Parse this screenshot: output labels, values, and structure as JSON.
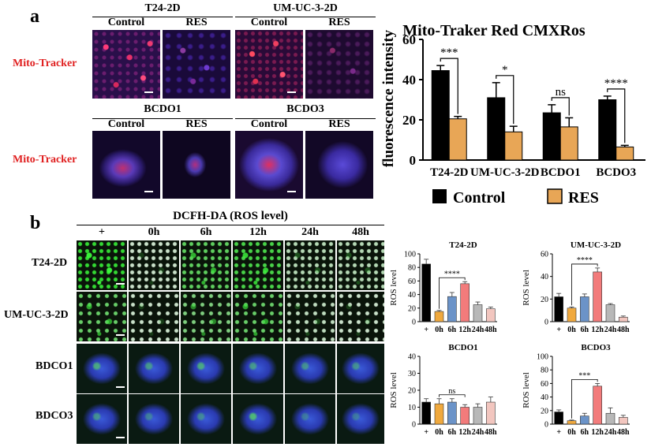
{
  "panel_a": {
    "label": "a",
    "groups": [
      {
        "title": "T24-2D",
        "conditions": [
          "Control",
          "RES"
        ]
      },
      {
        "title": "UM-UC-3-2D",
        "conditions": [
          "Control",
          "RES"
        ]
      },
      {
        "title": "BCDO1",
        "conditions": [
          "Control",
          "RES"
        ]
      },
      {
        "title": "BCDO3",
        "conditions": [
          "Control",
          "RES"
        ]
      }
    ],
    "row_label": "Mito-Tracker"
  },
  "panel_b": {
    "label": "b",
    "header": "DCFH-DA (ROS level)",
    "timepoints": [
      "+",
      "0h",
      "6h",
      "12h",
      "24h",
      "48h"
    ],
    "rows": [
      "T24-2D",
      "UM-UC-3-2D",
      "BDCO1",
      "BDCO3"
    ]
  },
  "colors": {
    "control": "#000000",
    "res": "#e8a656",
    "ros_bars": [
      "#000000",
      "#f0a93e",
      "#6b93c8",
      "#f27b7b",
      "#b8b8b8",
      "#f2c6bf"
    ]
  },
  "chart_data": [
    {
      "type": "bar",
      "title": "Mito-Traker Red CMXRos",
      "ylabel": "fluorescence intensity",
      "xlabel": "",
      "ylim": [
        0,
        60
      ],
      "yticks": [
        0,
        20,
        40,
        60
      ],
      "categories": [
        "T24-2D",
        "UM-UC-3-2D",
        "BCDO1",
        "BCDO3"
      ],
      "series": [
        {
          "name": "Control",
          "values": [
            44.5,
            31,
            23.5,
            30
          ],
          "errors": [
            2.5,
            7.5,
            4,
            1.8
          ]
        },
        {
          "name": "RES",
          "values": [
            20.5,
            14,
            16.5,
            6.5
          ],
          "errors": [
            1.2,
            2.8,
            4.5,
            0.8
          ]
        }
      ],
      "significance": [
        "***",
        "*",
        "ns",
        "****"
      ],
      "legend": "bottom"
    },
    {
      "type": "bar",
      "title": "T24-2D",
      "ylabel": "ROS level",
      "ylim": [
        0,
        100
      ],
      "yticks": [
        0,
        20,
        40,
        60,
        80,
        100
      ],
      "categories": [
        "+",
        "0h",
        "6h",
        "12h",
        "24h",
        "48h"
      ],
      "values": [
        85,
        15,
        37,
        56,
        25,
        19
      ],
      "errors": [
        7,
        1.5,
        6,
        3,
        4,
        2.5
      ],
      "significance": {
        "label": "****",
        "from": 1,
        "to": 3
      }
    },
    {
      "type": "bar",
      "title": "UM-UC-3-2D",
      "ylabel": "ROS level",
      "ylim": [
        0,
        60
      ],
      "yticks": [
        0,
        20,
        40,
        60
      ],
      "categories": [
        "+",
        "0h",
        "6h",
        "12h",
        "24h",
        "48h"
      ],
      "values": [
        22,
        12,
        22,
        44,
        15,
        4
      ],
      "errors": [
        3,
        1,
        2.5,
        3.5,
        1,
        1
      ],
      "significance": {
        "label": "****",
        "from": 1,
        "to": 3
      }
    },
    {
      "type": "bar",
      "title": "BCDO1",
      "ylabel": "ROS level",
      "ylim": [
        0,
        40
      ],
      "yticks": [
        0,
        10,
        20,
        30,
        40
      ],
      "categories": [
        "+",
        "0h",
        "6h",
        "12h",
        "24h",
        "48h"
      ],
      "values": [
        13,
        12,
        13,
        10,
        10,
        13
      ],
      "errors": [
        2,
        3,
        2,
        1.5,
        2,
        3
      ],
      "significance": {
        "label": "ns",
        "from": 1,
        "to": 3
      }
    },
    {
      "type": "bar",
      "title": "BCDO3",
      "ylabel": "ROS level",
      "ylim": [
        0,
        100
      ],
      "yticks": [
        0,
        20,
        40,
        60,
        80,
        100
      ],
      "categories": [
        "+",
        "0h",
        "6h",
        "12h",
        "24h",
        "48h"
      ],
      "values": [
        18,
        5,
        12,
        56,
        16,
        10
      ],
      "errors": [
        3,
        1,
        4,
        4,
        8,
        3
      ],
      "significance": {
        "label": "***",
        "from": 1,
        "to": 3
      }
    }
  ]
}
